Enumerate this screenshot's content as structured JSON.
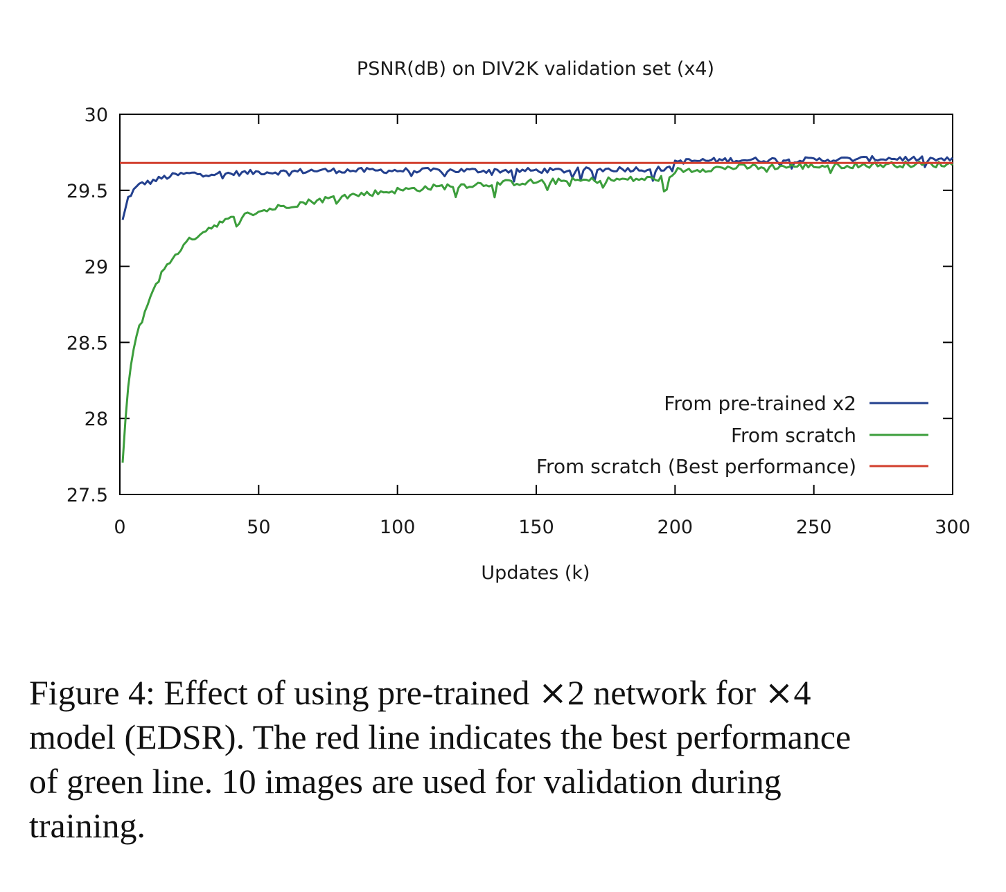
{
  "chart_data": {
    "type": "line",
    "title": "PSNR(dB) on DIV2K validation set (x4)",
    "xlabel": "Updates (k)",
    "ylabel": "",
    "xlim": [
      0,
      300
    ],
    "ylim": [
      27.5,
      30
    ],
    "xticks": [
      "0",
      "50",
      "100",
      "150",
      "200",
      "250",
      "300"
    ],
    "yticks": [
      "27.5",
      "28",
      "28.5",
      "29",
      "29.5",
      "30"
    ],
    "legend_position": "bottom-right",
    "series": [
      {
        "name": "From pre-trained x2",
        "color": "#23408e",
        "x": [
          1,
          3,
          5,
          8,
          10,
          15,
          20,
          25,
          30,
          40,
          50,
          60,
          70,
          80,
          90,
          100,
          120,
          140,
          160,
          180,
          199,
          200,
          220,
          250,
          280,
          300
        ],
        "y": [
          29.3,
          29.45,
          29.5,
          29.55,
          29.55,
          29.58,
          29.6,
          29.61,
          29.61,
          29.61,
          29.62,
          29.62,
          29.63,
          29.63,
          29.63,
          29.63,
          29.63,
          29.63,
          29.63,
          29.64,
          29.64,
          29.69,
          29.7,
          29.7,
          29.71,
          29.7
        ]
      },
      {
        "name": "From scratch",
        "color": "#3c9e3c",
        "x": [
          1,
          2,
          3,
          4,
          5,
          7,
          9,
          12,
          15,
          20,
          25,
          30,
          35,
          40,
          50,
          60,
          70,
          80,
          90,
          100,
          120,
          140,
          160,
          180,
          199,
          200,
          220,
          250,
          280,
          300
        ],
        "y": [
          27.7,
          28.0,
          28.2,
          28.35,
          28.45,
          28.6,
          28.7,
          28.85,
          28.95,
          29.08,
          29.17,
          29.23,
          29.28,
          29.31,
          29.36,
          29.4,
          29.43,
          29.46,
          29.48,
          29.5,
          29.53,
          29.55,
          29.56,
          29.57,
          29.58,
          29.63,
          29.65,
          29.66,
          29.67,
          29.67
        ]
      },
      {
        "name": "From scratch (Best performance)",
        "color": "#d23f2e",
        "x": [
          0,
          300
        ],
        "y": [
          29.68,
          29.68
        ]
      }
    ]
  },
  "caption": {
    "line1_a": "Figure 4: Effect of using pre-trained ",
    "line1_times1": "×",
    "line1_b": "2 network for ",
    "line1_times2": "×",
    "line1_c": "4",
    "line2": "model (EDSR). The red line indicates the best performance",
    "line3": "of green line. 10 images are used for validation during",
    "line4": "training."
  }
}
